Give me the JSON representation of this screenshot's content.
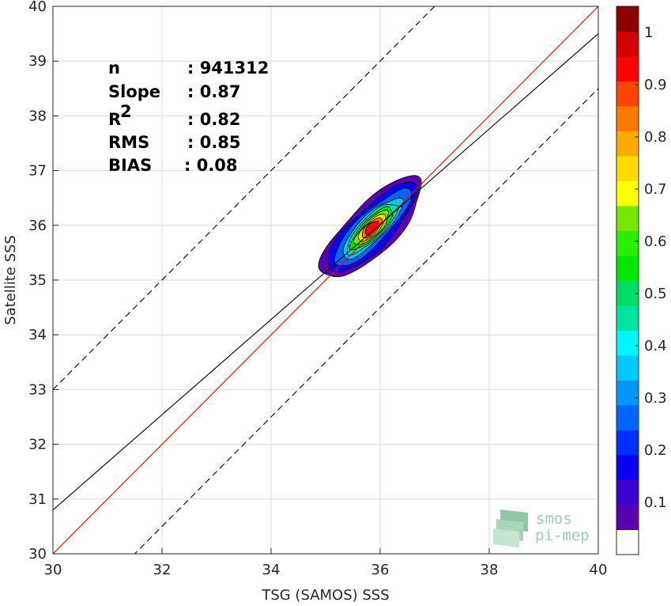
{
  "chart_data": {
    "type": "heatmap",
    "title": "",
    "xlabel": "TSG (SAMOS) SSS",
    "ylabel": "Satellite SSS",
    "xlim": [
      30,
      40
    ],
    "ylim": [
      30,
      40
    ],
    "xticks": [
      "30",
      "32",
      "34",
      "36",
      "38",
      "40"
    ],
    "yticks": [
      "30",
      "31",
      "32",
      "33",
      "34",
      "35",
      "36",
      "37",
      "38",
      "39",
      "40"
    ],
    "grid": true,
    "stats": [
      {
        "label": "n",
        "value": ": 941312"
      },
      {
        "label": "Slope",
        "value": ": 0.87"
      },
      {
        "label": "R",
        "sup": "2",
        "value": ": 0.82"
      },
      {
        "label": "RMS",
        "value": ": 0.85"
      },
      {
        "label": "BIAS",
        "value": ": 0.08"
      }
    ],
    "lines": [
      {
        "name": "one-to-one",
        "color": "#ff0000",
        "style": "solid",
        "slope": 1,
        "intercept": 0
      },
      {
        "name": "regression",
        "color": "#000000",
        "style": "solid",
        "slope": 0.87,
        "intercept": 4.7
      },
      {
        "name": "upper-bound",
        "color": "#000000",
        "style": "dashed",
        "slope": 1,
        "intercept": 3
      },
      {
        "name": "lower-bound",
        "color": "#000000",
        "style": "dashed",
        "slope": 1,
        "intercept": -1.5
      }
    ],
    "density_contours": {
      "center": [
        35.85,
        35.95
      ],
      "levels": [
        {
          "level": 0.05,
          "sx": 1.23,
          "sy": 0.44
        },
        {
          "level": 0.1,
          "sx": 1.1,
          "sy": 0.36
        },
        {
          "level": 0.2,
          "sx": 0.96,
          "sy": 0.28
        },
        {
          "level": 0.3,
          "sx": 0.74,
          "sy": 0.23
        },
        {
          "level": 0.4,
          "sx": 0.62,
          "sy": 0.2
        },
        {
          "level": 0.5,
          "sx": 0.52,
          "sy": 0.17
        },
        {
          "level": 0.6,
          "sx": 0.42,
          "sy": 0.145
        },
        {
          "level": 0.7,
          "sx": 0.33,
          "sy": 0.12
        },
        {
          "level": 0.8,
          "sx": 0.24,
          "sy": 0.1
        },
        {
          "level": 0.9,
          "sx": 0.16,
          "sy": 0.08
        }
      ]
    },
    "colorbar": {
      "ticks": [
        "0.1",
        "0.2",
        "0.3",
        "0.4",
        "0.5",
        "0.6",
        "0.7",
        "0.8",
        "0.9",
        "1"
      ],
      "colors": [
        "#ffffff",
        "#5b00b0",
        "#3c00d2",
        "#0a00f5",
        "#0030ff",
        "#0064ff",
        "#0096ff",
        "#00c8ff",
        "#00f5ff",
        "#00e6a0",
        "#00dc64",
        "#00e600",
        "#28f000",
        "#78e600",
        "#ffff00",
        "#ffdc00",
        "#ffaa00",
        "#ff7800",
        "#ff4600",
        "#ff0000",
        "#d20000",
        "#8c0000"
      ]
    },
    "logo": {
      "line1": "smos",
      "line2": "pi-mep"
    }
  }
}
